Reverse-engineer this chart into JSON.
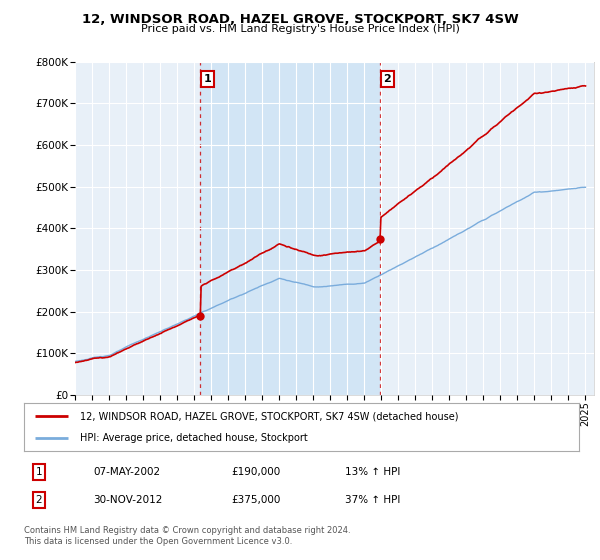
{
  "title": "12, WINDSOR ROAD, HAZEL GROVE, STOCKPORT, SK7 4SW",
  "subtitle": "Price paid vs. HM Land Registry's House Price Index (HPI)",
  "background_color": "#ffffff",
  "plot_bg_color": "#e8f0f8",
  "grid_color": "#ffffff",
  "hpi_color": "#7aacdc",
  "price_color": "#cc0000",
  "shade_color": "#d0e4f5",
  "ylim": [
    0,
    800000
  ],
  "yticks": [
    0,
    100000,
    200000,
    300000,
    400000,
    500000,
    600000,
    700000,
    800000
  ],
  "ytick_labels": [
    "£0",
    "£100K",
    "£200K",
    "£300K",
    "£400K",
    "£500K",
    "£600K",
    "£700K",
    "£800K"
  ],
  "sale1_year": 2002.35,
  "sale1_price": 190000,
  "sale2_year": 2012.92,
  "sale2_price": 375000,
  "legend_label_red": "12, WINDSOR ROAD, HAZEL GROVE, STOCKPORT, SK7 4SW (detached house)",
  "legend_label_blue": "HPI: Average price, detached house, Stockport",
  "annotation1_label": "1",
  "annotation2_label": "2",
  "table_row1": [
    "1",
    "07-MAY-2002",
    "£190,000",
    "13% ↑ HPI"
  ],
  "table_row2": [
    "2",
    "30-NOV-2012",
    "£375,000",
    "37% ↑ HPI"
  ],
  "footer": "Contains HM Land Registry data © Crown copyright and database right 2024.\nThis data is licensed under the Open Government Licence v3.0."
}
